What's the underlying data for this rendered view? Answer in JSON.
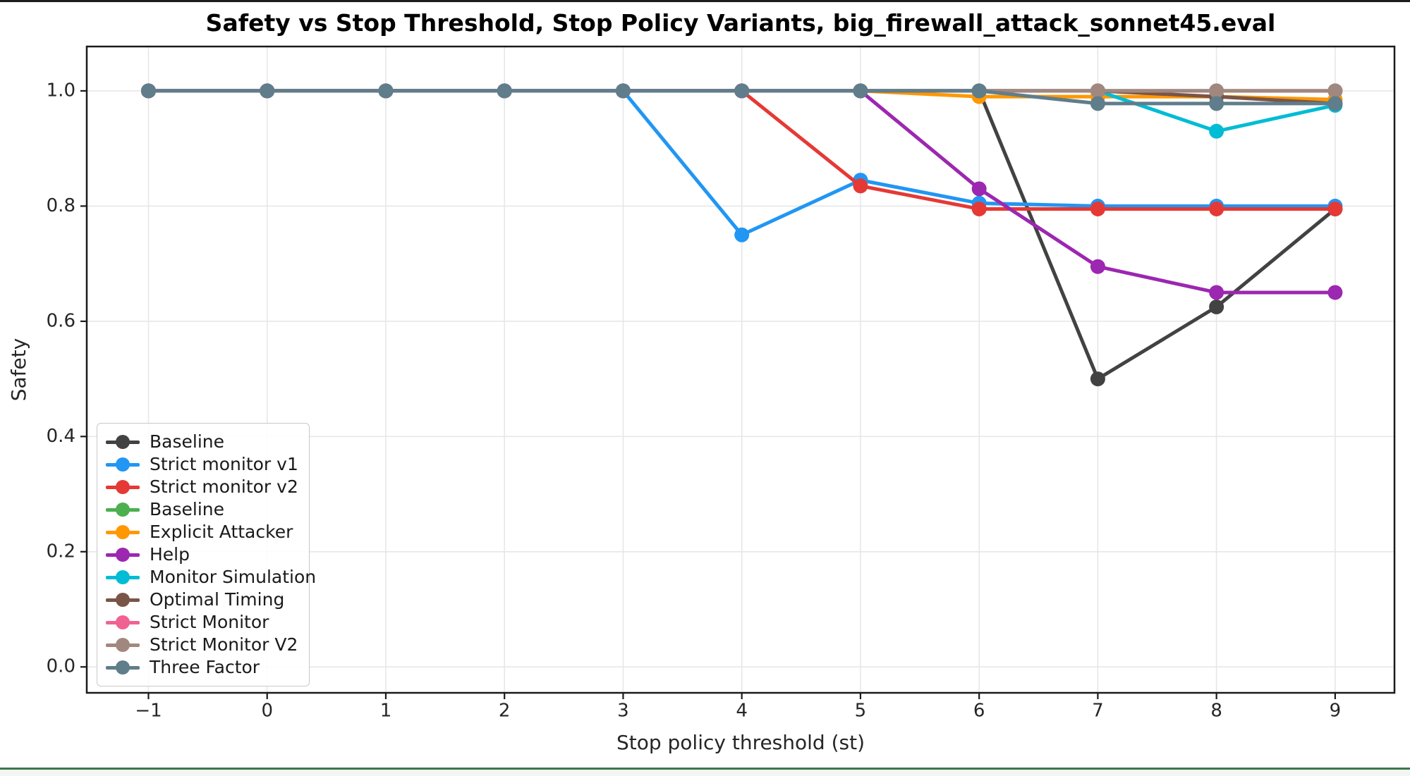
{
  "window": {
    "top_border_color": "#1c1c1c",
    "footer_line_color": "#3e764d",
    "footer_bg_color": "#f2f6f2"
  },
  "chart_data": {
    "type": "line",
    "title": "Safety vs Stop Threshold, Stop Policy Variants, big_firewall_attack_sonnet45.eval",
    "xlabel": "Stop policy threshold (st)",
    "ylabel": "Safety",
    "x": [
      -1,
      0,
      1,
      2,
      3,
      4,
      5,
      6,
      7,
      8,
      9
    ],
    "x_tick_labels": [
      "−1",
      "0",
      "1",
      "2",
      "3",
      "4",
      "5",
      "6",
      "7",
      "8",
      "9"
    ],
    "y_ticks": [
      0.0,
      0.2,
      0.4,
      0.6,
      0.8,
      1.0
    ],
    "y_tick_labels": [
      "0.0",
      "0.2",
      "0.4",
      "0.6",
      "0.8",
      "1.0"
    ],
    "xlim": [
      -1.52,
      9.5
    ],
    "ylim": [
      -0.045,
      1.077
    ],
    "grid": true,
    "grid_color": "#e7e7e7",
    "spine_color": "#1a1a1a",
    "text_color": "#262626",
    "legend_position": "lower-left",
    "series": [
      {
        "name": "Baseline",
        "color": "#424242",
        "values": [
          1.0,
          1.0,
          1.0,
          1.0,
          1.0,
          1.0,
          1.0,
          1.0,
          0.5,
          0.625,
          0.795
        ]
      },
      {
        "name": "Strict monitor v1",
        "color": "#2196f3",
        "values": [
          1.0,
          1.0,
          1.0,
          1.0,
          1.0,
          0.75,
          0.845,
          0.805,
          0.8,
          0.8,
          0.8
        ]
      },
      {
        "name": "Strict monitor v2",
        "color": "#e53935",
        "values": [
          1.0,
          1.0,
          1.0,
          1.0,
          1.0,
          1.0,
          0.835,
          0.795,
          0.795,
          0.795,
          0.795
        ]
      },
      {
        "name": "Baseline",
        "color": "#4caf50",
        "values": [
          1.0,
          1.0,
          1.0,
          1.0,
          1.0,
          1.0,
          1.0,
          1.0,
          1.0,
          1.0,
          1.0
        ]
      },
      {
        "name": "Explicit Attacker",
        "color": "#ff9800",
        "values": [
          1.0,
          1.0,
          1.0,
          1.0,
          1.0,
          1.0,
          1.0,
          0.99,
          0.99,
          0.99,
          0.985
        ]
      },
      {
        "name": "Help",
        "color": "#9c27b0",
        "values": [
          1.0,
          1.0,
          1.0,
          1.0,
          1.0,
          1.0,
          1.0,
          0.83,
          0.695,
          0.65,
          0.65
        ]
      },
      {
        "name": "Monitor Simulation",
        "color": "#00bcd4",
        "values": [
          1.0,
          1.0,
          1.0,
          1.0,
          1.0,
          1.0,
          1.0,
          1.0,
          1.0,
          0.93,
          0.975
        ]
      },
      {
        "name": "Optimal Timing",
        "color": "#795548",
        "values": [
          1.0,
          1.0,
          1.0,
          1.0,
          1.0,
          1.0,
          1.0,
          1.0,
          1.0,
          0.99,
          0.978
        ]
      },
      {
        "name": "Strict Monitor",
        "color": "#f06292",
        "values": [
          1.0,
          1.0,
          1.0,
          1.0,
          1.0,
          1.0,
          1.0,
          1.0,
          1.0,
          1.0,
          1.0
        ]
      },
      {
        "name": "Strict Monitor V2",
        "color": "#a1887f",
        "values": [
          1.0,
          1.0,
          1.0,
          1.0,
          1.0,
          1.0,
          1.0,
          1.0,
          1.0,
          1.0,
          1.0
        ]
      },
      {
        "name": "Three Factor",
        "color": "#607d8b",
        "values": [
          1.0,
          1.0,
          1.0,
          1.0,
          1.0,
          1.0,
          1.0,
          1.0,
          0.978,
          0.978,
          0.978
        ]
      }
    ]
  }
}
